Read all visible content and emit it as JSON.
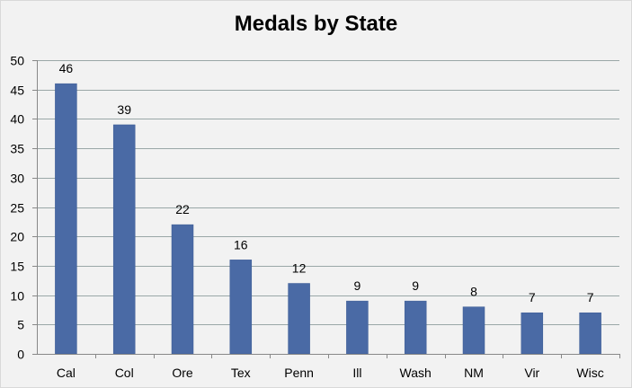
{
  "chart_data": {
    "type": "bar",
    "title": "Medals by State",
    "xlabel": "",
    "ylabel": "",
    "categories": [
      "Cal",
      "Col",
      "Ore",
      "Tex",
      "Penn",
      "Ill",
      "Wash",
      "NM",
      "Vir",
      "Wisc"
    ],
    "values": [
      46,
      39,
      22,
      16,
      12,
      9,
      9,
      8,
      7,
      7
    ],
    "ylim": [
      0,
      50
    ],
    "yticks": [
      0,
      5,
      10,
      15,
      20,
      25,
      30,
      35,
      40,
      45,
      50
    ],
    "grid": true,
    "legend": "none",
    "data_labels": true,
    "colors": {
      "bar": "#4a6aa5",
      "bar_stroke": "#3b5a94",
      "grid": "#9aa7a7",
      "axis": "#888888",
      "background": "#f2f2f2"
    }
  }
}
